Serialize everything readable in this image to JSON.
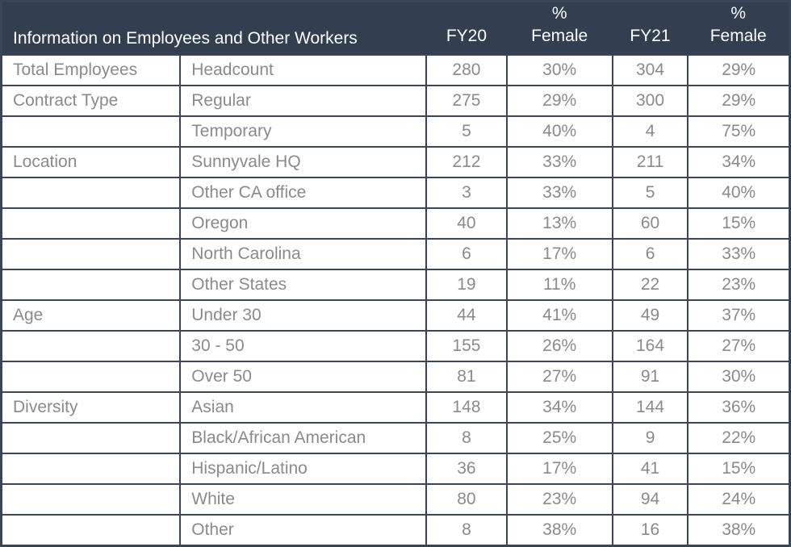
{
  "colors": {
    "header_bg": "#333F50",
    "border": "#3A4557",
    "body_text": "#8A8A8A",
    "header_text": "#FFFFFF",
    "row_bg": "#FFFFFF"
  },
  "table": {
    "title": "Information on Employees and Other Workers",
    "columns": [
      "FY20",
      "%\nFemale",
      "FY21",
      "%\nFemale"
    ],
    "rows": [
      {
        "category": "Total Employees",
        "label": "Headcount",
        "fy20": "280",
        "fy20_pct_female": "30%",
        "fy21": "304",
        "fy21_pct_female": "29%"
      },
      {
        "category": "Contract Type",
        "label": "Regular",
        "fy20": "275",
        "fy20_pct_female": "29%",
        "fy21": "300",
        "fy21_pct_female": "29%"
      },
      {
        "category": "",
        "label": "Temporary",
        "fy20": "5",
        "fy20_pct_female": "40%",
        "fy21": "4",
        "fy21_pct_female": "75%"
      },
      {
        "category": "Location",
        "label": "Sunnyvale HQ",
        "fy20": "212",
        "fy20_pct_female": "33%",
        "fy21": "211",
        "fy21_pct_female": "34%"
      },
      {
        "category": "",
        "label": "Other CA office",
        "fy20": "3",
        "fy20_pct_female": "33%",
        "fy21": "5",
        "fy21_pct_female": "40%"
      },
      {
        "category": "",
        "label": "Oregon",
        "fy20": "40",
        "fy20_pct_female": "13%",
        "fy21": "60",
        "fy21_pct_female": "15%"
      },
      {
        "category": "",
        "label": "North Carolina",
        "fy20": "6",
        "fy20_pct_female": "17%",
        "fy21": "6",
        "fy21_pct_female": "33%"
      },
      {
        "category": "",
        "label": "Other States",
        "fy20": "19",
        "fy20_pct_female": "11%",
        "fy21": "22",
        "fy21_pct_female": "23%"
      },
      {
        "category": "Age",
        "label": "Under 30",
        "fy20": "44",
        "fy20_pct_female": "41%",
        "fy21": "49",
        "fy21_pct_female": "37%"
      },
      {
        "category": "",
        "label": "30 - 50",
        "fy20": "155",
        "fy20_pct_female": "26%",
        "fy21": "164",
        "fy21_pct_female": "27%"
      },
      {
        "category": "",
        "label": "Over 50",
        "fy20": "81",
        "fy20_pct_female": "27%",
        "fy21": "91",
        "fy21_pct_female": "30%"
      },
      {
        "category": "Diversity",
        "label": "Asian",
        "fy20": "148",
        "fy20_pct_female": "34%",
        "fy21": "144",
        "fy21_pct_female": "36%"
      },
      {
        "category": "",
        "label": "Black/African American",
        "fy20": "8",
        "fy20_pct_female": "25%",
        "fy21": "9",
        "fy21_pct_female": "22%"
      },
      {
        "category": "",
        "label": "Hispanic/Latino",
        "fy20": "36",
        "fy20_pct_female": "17%",
        "fy21": "41",
        "fy21_pct_female": "15%"
      },
      {
        "category": "",
        "label": "White",
        "fy20": "80",
        "fy20_pct_female": "23%",
        "fy21": "94",
        "fy21_pct_female": "24%"
      },
      {
        "category": "",
        "label": "Other",
        "fy20": "8",
        "fy20_pct_female": "38%",
        "fy21": "16",
        "fy21_pct_female": "38%"
      }
    ]
  }
}
